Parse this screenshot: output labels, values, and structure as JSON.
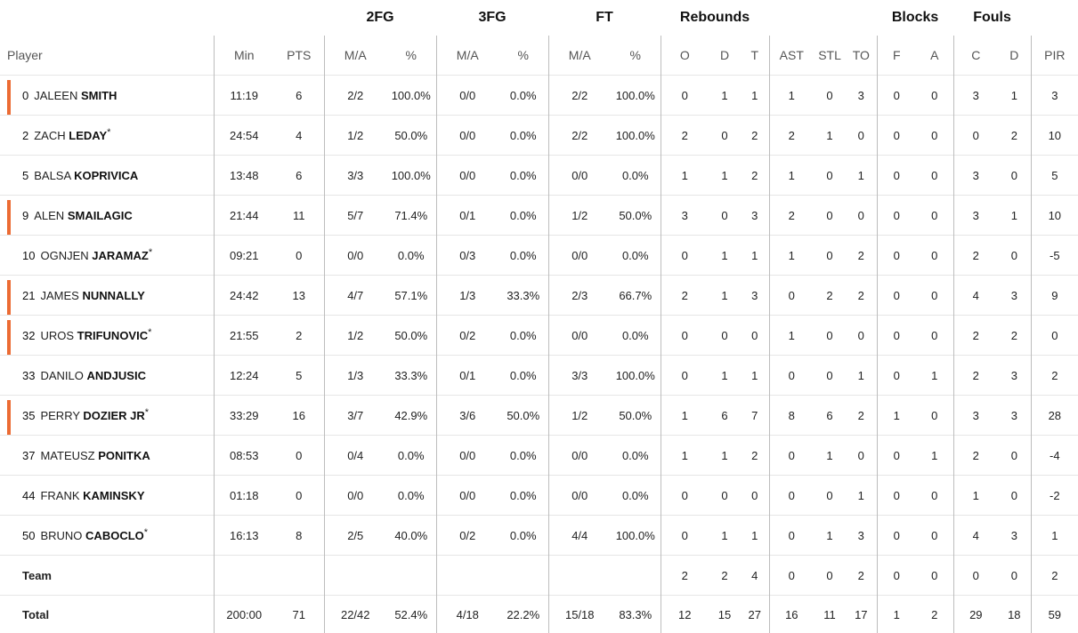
{
  "header": {
    "groups": {
      "fg2": "2FG",
      "fg3": "3FG",
      "ft": "FT",
      "rebounds": "Rebounds",
      "blocks": "Blocks",
      "fouls": "Fouls"
    },
    "cols": {
      "player": "Player",
      "min": "Min",
      "pts": "PTS",
      "fg2_ma": "M/A",
      "fg2_pct": "%",
      "fg3_ma": "M/A",
      "fg3_pct": "%",
      "ft_ma": "M/A",
      "ft_pct": "%",
      "reb_o": "O",
      "reb_d": "D",
      "reb_t": "T",
      "ast": "AST",
      "stl": "STL",
      "to": "TO",
      "blk_f": "F",
      "blk_a": "A",
      "foul_c": "C",
      "foul_d": "D",
      "pir": "PIR"
    }
  },
  "accent_color": "#ec6b33",
  "players": [
    {
      "num": "0",
      "first": "JALEEN",
      "last": "SMITH",
      "star": "",
      "starter": true,
      "min": "11:19",
      "pts": "6",
      "fg2_ma": "2/2",
      "fg2_pct": "100.0%",
      "fg3_ma": "0/0",
      "fg3_pct": "0.0%",
      "ft_ma": "2/2",
      "ft_pct": "100.0%",
      "reb_o": "0",
      "reb_d": "1",
      "reb_t": "1",
      "ast": "1",
      "stl": "0",
      "to": "3",
      "blk_f": "0",
      "blk_a": "0",
      "foul_c": "3",
      "foul_d": "1",
      "pir": "3"
    },
    {
      "num": "2",
      "first": "ZACH",
      "last": "LEDAY",
      "star": "*",
      "starter": false,
      "min": "24:54",
      "pts": "4",
      "fg2_ma": "1/2",
      "fg2_pct": "50.0%",
      "fg3_ma": "0/0",
      "fg3_pct": "0.0%",
      "ft_ma": "2/2",
      "ft_pct": "100.0%",
      "reb_o": "2",
      "reb_d": "0",
      "reb_t": "2",
      "ast": "2",
      "stl": "1",
      "to": "0",
      "blk_f": "0",
      "blk_a": "0",
      "foul_c": "0",
      "foul_d": "2",
      "pir": "10"
    },
    {
      "num": "5",
      "first": "BALSA",
      "last": "KOPRIVICA",
      "star": "",
      "starter": false,
      "min": "13:48",
      "pts": "6",
      "fg2_ma": "3/3",
      "fg2_pct": "100.0%",
      "fg3_ma": "0/0",
      "fg3_pct": "0.0%",
      "ft_ma": "0/0",
      "ft_pct": "0.0%",
      "reb_o": "1",
      "reb_d": "1",
      "reb_t": "2",
      "ast": "1",
      "stl": "0",
      "to": "1",
      "blk_f": "0",
      "blk_a": "0",
      "foul_c": "3",
      "foul_d": "0",
      "pir": "5"
    },
    {
      "num": "9",
      "first": "ALEN",
      "last": "SMAILAGIC",
      "star": "",
      "starter": true,
      "min": "21:44",
      "pts": "11",
      "fg2_ma": "5/7",
      "fg2_pct": "71.4%",
      "fg3_ma": "0/1",
      "fg3_pct": "0.0%",
      "ft_ma": "1/2",
      "ft_pct": "50.0%",
      "reb_o": "3",
      "reb_d": "0",
      "reb_t": "3",
      "ast": "2",
      "stl": "0",
      "to": "0",
      "blk_f": "0",
      "blk_a": "0",
      "foul_c": "3",
      "foul_d": "1",
      "pir": "10"
    },
    {
      "num": "10",
      "first": "OGNJEN",
      "last": "JARAMAZ",
      "star": "*",
      "starter": false,
      "min": "09:21",
      "pts": "0",
      "fg2_ma": "0/0",
      "fg2_pct": "0.0%",
      "fg3_ma": "0/3",
      "fg3_pct": "0.0%",
      "ft_ma": "0/0",
      "ft_pct": "0.0%",
      "reb_o": "0",
      "reb_d": "1",
      "reb_t": "1",
      "ast": "1",
      "stl": "0",
      "to": "2",
      "blk_f": "0",
      "blk_a": "0",
      "foul_c": "2",
      "foul_d": "0",
      "pir": "-5"
    },
    {
      "num": "21",
      "first": "JAMES",
      "last": "NUNNALLY",
      "star": "",
      "starter": true,
      "min": "24:42",
      "pts": "13",
      "fg2_ma": "4/7",
      "fg2_pct": "57.1%",
      "fg3_ma": "1/3",
      "fg3_pct": "33.3%",
      "ft_ma": "2/3",
      "ft_pct": "66.7%",
      "reb_o": "2",
      "reb_d": "1",
      "reb_t": "3",
      "ast": "0",
      "stl": "2",
      "to": "2",
      "blk_f": "0",
      "blk_a": "0",
      "foul_c": "4",
      "foul_d": "3",
      "pir": "9"
    },
    {
      "num": "32",
      "first": "UROS",
      "last": "TRIFUNOVIC",
      "star": "*",
      "starter": true,
      "min": "21:55",
      "pts": "2",
      "fg2_ma": "1/2",
      "fg2_pct": "50.0%",
      "fg3_ma": "0/2",
      "fg3_pct": "0.0%",
      "ft_ma": "0/0",
      "ft_pct": "0.0%",
      "reb_o": "0",
      "reb_d": "0",
      "reb_t": "0",
      "ast": "1",
      "stl": "0",
      "to": "0",
      "blk_f": "0",
      "blk_a": "0",
      "foul_c": "2",
      "foul_d": "2",
      "pir": "0"
    },
    {
      "num": "33",
      "first": "DANILO",
      "last": "ANDJUSIC",
      "star": "",
      "starter": false,
      "min": "12:24",
      "pts": "5",
      "fg2_ma": "1/3",
      "fg2_pct": "33.3%",
      "fg3_ma": "0/1",
      "fg3_pct": "0.0%",
      "ft_ma": "3/3",
      "ft_pct": "100.0%",
      "reb_o": "0",
      "reb_d": "1",
      "reb_t": "1",
      "ast": "0",
      "stl": "0",
      "to": "1",
      "blk_f": "0",
      "blk_a": "1",
      "foul_c": "2",
      "foul_d": "3",
      "pir": "2"
    },
    {
      "num": "35",
      "first": "PERRY",
      "last": "DOZIER JR",
      "star": "*",
      "starter": true,
      "min": "33:29",
      "pts": "16",
      "fg2_ma": "3/7",
      "fg2_pct": "42.9%",
      "fg3_ma": "3/6",
      "fg3_pct": "50.0%",
      "ft_ma": "1/2",
      "ft_pct": "50.0%",
      "reb_o": "1",
      "reb_d": "6",
      "reb_t": "7",
      "ast": "8",
      "stl": "6",
      "to": "2",
      "blk_f": "1",
      "blk_a": "0",
      "foul_c": "3",
      "foul_d": "3",
      "pir": "28"
    },
    {
      "num": "37",
      "first": "MATEUSZ",
      "last": "PONITKA",
      "star": "",
      "starter": false,
      "min": "08:53",
      "pts": "0",
      "fg2_ma": "0/4",
      "fg2_pct": "0.0%",
      "fg3_ma": "0/0",
      "fg3_pct": "0.0%",
      "ft_ma": "0/0",
      "ft_pct": "0.0%",
      "reb_o": "1",
      "reb_d": "1",
      "reb_t": "2",
      "ast": "0",
      "stl": "1",
      "to": "0",
      "blk_f": "0",
      "blk_a": "1",
      "foul_c": "2",
      "foul_d": "0",
      "pir": "-4"
    },
    {
      "num": "44",
      "first": "FRANK",
      "last": "KAMINSKY",
      "star": "",
      "starter": false,
      "min": "01:18",
      "pts": "0",
      "fg2_ma": "0/0",
      "fg2_pct": "0.0%",
      "fg3_ma": "0/0",
      "fg3_pct": "0.0%",
      "ft_ma": "0/0",
      "ft_pct": "0.0%",
      "reb_o": "0",
      "reb_d": "0",
      "reb_t": "0",
      "ast": "0",
      "stl": "0",
      "to": "1",
      "blk_f": "0",
      "blk_a": "0",
      "foul_c": "1",
      "foul_d": "0",
      "pir": "-2"
    },
    {
      "num": "50",
      "first": "BRUNO",
      "last": "CABOCLO",
      "star": "*",
      "starter": false,
      "min": "16:13",
      "pts": "8",
      "fg2_ma": "2/5",
      "fg2_pct": "40.0%",
      "fg3_ma": "0/2",
      "fg3_pct": "0.0%",
      "ft_ma": "4/4",
      "ft_pct": "100.0%",
      "reb_o": "0",
      "reb_d": "1",
      "reb_t": "1",
      "ast": "0",
      "stl": "1",
      "to": "3",
      "blk_f": "0",
      "blk_a": "0",
      "foul_c": "4",
      "foul_d": "3",
      "pir": "1"
    }
  ],
  "team_row": {
    "label": "Team",
    "min": "",
    "pts": "",
    "fg2_ma": "",
    "fg2_pct": "",
    "fg3_ma": "",
    "fg3_pct": "",
    "ft_ma": "",
    "ft_pct": "",
    "reb_o": "2",
    "reb_d": "2",
    "reb_t": "4",
    "ast": "0",
    "stl": "0",
    "to": "2",
    "blk_f": "0",
    "blk_a": "0",
    "foul_c": "0",
    "foul_d": "0",
    "pir": "2"
  },
  "total_row": {
    "label": "Total",
    "min": "200:00",
    "pts": "71",
    "fg2_ma": "22/42",
    "fg2_pct": "52.4%",
    "fg3_ma": "4/18",
    "fg3_pct": "22.2%",
    "ft_ma": "15/18",
    "ft_pct": "83.3%",
    "reb_o": "12",
    "reb_d": "15",
    "reb_t": "27",
    "ast": "16",
    "stl": "11",
    "to": "17",
    "blk_f": "1",
    "blk_a": "2",
    "foul_c": "29",
    "foul_d": "18",
    "pir": "59"
  }
}
